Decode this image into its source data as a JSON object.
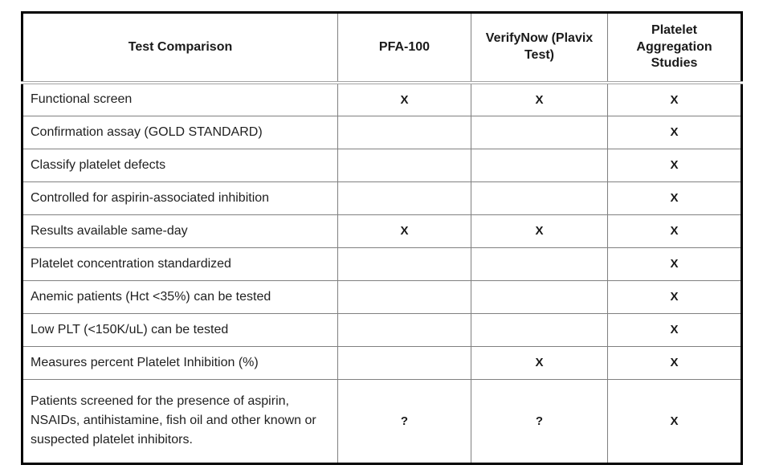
{
  "page": {
    "background_color": "#ffffff"
  },
  "table": {
    "columns": [
      "Test Comparison",
      "PFA-100",
      "VerifyNow (Plavix Test)",
      "Platelet Aggregation Studies"
    ],
    "rows": [
      {
        "label": "Functional screen",
        "cells": [
          "X",
          "X",
          "X"
        ]
      },
      {
        "label": "Confirmation assay (GOLD STANDARD)",
        "cells": [
          "",
          "",
          "X"
        ]
      },
      {
        "label": "Classify platelet defects",
        "cells": [
          "",
          "",
          "X"
        ]
      },
      {
        "label": "Controlled for aspirin-associated inhibition",
        "cells": [
          "",
          "",
          "X"
        ]
      },
      {
        "label": "Results available same-day",
        "cells": [
          "X",
          "X",
          "X"
        ]
      },
      {
        "label": "Platelet concentration standardized",
        "cells": [
          "",
          "",
          "X"
        ]
      },
      {
        "label": "Anemic patients (Hct <35%) can be tested",
        "cells": [
          "",
          "",
          "X"
        ]
      },
      {
        "label": "Low PLT (<150K/uL) can be tested",
        "cells": [
          "",
          "",
          "X"
        ]
      },
      {
        "label": "Measures percent Platelet Inhibition (%)",
        "cells": [
          "",
          "X",
          "X"
        ]
      },
      {
        "label": "Patients screened for the presence of aspirin, NSAIDs, antihistamine, fish oil and other known or suspected platelet inhibitors.",
        "cells": [
          "?",
          "?",
          "X"
        ]
      }
    ],
    "colors": {
      "outer_border": "#000000",
      "grid_line": "#808080",
      "header_rule": "#a3a3a3",
      "text": "#1a1a1a"
    }
  }
}
